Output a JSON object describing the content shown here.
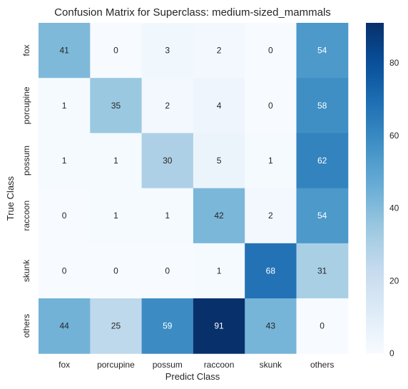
{
  "chart_data": {
    "type": "heatmap",
    "title": "Confusion Matrix for Superclass: medium-sized_mammals",
    "xlabel": "Predict Class",
    "ylabel": "True Class",
    "x_categories": [
      "fox",
      "porcupine",
      "possum",
      "raccoon",
      "skunk",
      "others"
    ],
    "y_categories": [
      "fox",
      "porcupine",
      "possum",
      "raccoon",
      "skunk",
      "others"
    ],
    "values": [
      [
        41,
        0,
        3,
        2,
        0,
        54
      ],
      [
        1,
        35,
        2,
        4,
        0,
        58
      ],
      [
        1,
        1,
        30,
        5,
        1,
        62
      ],
      [
        0,
        1,
        1,
        42,
        2,
        54
      ],
      [
        0,
        0,
        0,
        1,
        68,
        31
      ],
      [
        44,
        25,
        59,
        91,
        43,
        0
      ]
    ],
    "colormap": "Blues",
    "colorbar": {
      "min": 0,
      "max": 91,
      "ticks": [
        0,
        20,
        40,
        60,
        80
      ]
    },
    "grid": false
  }
}
